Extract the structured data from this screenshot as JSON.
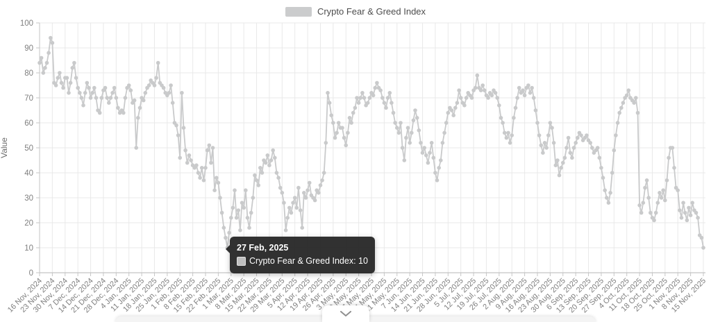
{
  "legend": {
    "label": "Crypto Fear & Greed Index",
    "swatch_color": "#cbcccd"
  },
  "y_axis": {
    "title": "Value"
  },
  "tooltip": {
    "date": "27 Feb, 2025",
    "series_label": "Crypto Fear & Greed Index: 10",
    "value": 10,
    "anchor_date_index": 103
  },
  "chart_data": {
    "type": "line",
    "series": [
      {
        "name": "Crypto Fear & Greed Index",
        "color": "#c9cacb"
      }
    ],
    "title": "",
    "xlabel": "",
    "ylabel": "Value",
    "ylim": [
      0,
      100
    ],
    "y_tick_step": 10,
    "grid": true,
    "legend_position": "top",
    "start_date": "2024-11-16",
    "x_tick_every_days": 7,
    "x_tick_labels": [
      "16 Nov, 2024",
      "23 Nov, 2024",
      "30 Nov, 2024",
      "7 Dec, 2024",
      "14 Dec, 2024",
      "21 Dec, 2024",
      "28 Dec, 2024",
      "4 Jan, 2025",
      "11 Jan, 2025",
      "18 Jan, 2025",
      "25 Jan, 2025",
      "1 Feb, 2025",
      "8 Feb, 2025",
      "15 Feb, 2025",
      "22 Feb, 2025",
      "1 Mar, 2025",
      "8 Mar, 2025",
      "15 Mar, 2025",
      "22 Mar, 2025",
      "29 Mar, 2025",
      "5 Apr, 2025",
      "12 Apr, 2025",
      "19 Apr, 2025",
      "26 Apr, 2025",
      "3 May, 2025",
      "10 May, 2025",
      "17 May, 2025",
      "24 May, 2025",
      "31 May, 2025",
      "7 Jun, 2025",
      "14 Jun, 2025",
      "21 Jun, 2025",
      "28 Jun, 2025",
      "5 Jul, 2025",
      "12 Jul, 2025",
      "19 Jul, 2025",
      "26 Jul, 2025",
      "2 Aug, 2025",
      "9 Aug, 2025",
      "16 Aug, 2025",
      "23 Aug, 2025",
      "30 Aug, 2025",
      "6 Sep, 2025",
      "13 Sep, 2025",
      "20 Sep, 2025",
      "27 Sep, 2025",
      "4 Oct, 2025",
      "11 Oct, 2025",
      "18 Oct, 2025",
      "25 Oct, 2025",
      "1 Nov, 2025",
      "8 Nov, 2025",
      "15 Nov, 2025"
    ],
    "values": [
      84,
      86,
      80,
      82,
      84,
      88,
      94,
      92,
      76,
      75,
      78,
      80,
      76,
      74,
      78,
      78,
      72,
      76,
      82,
      84,
      78,
      74,
      72,
      70,
      67,
      72,
      76,
      74,
      70,
      72,
      74,
      70,
      65,
      64,
      70,
      73,
      74,
      70,
      68,
      70,
      72,
      74,
      70,
      66,
      64,
      65,
      64,
      70,
      74,
      75,
      73,
      68,
      69,
      50,
      62,
      66,
      70,
      69,
      72,
      74,
      75,
      77,
      76,
      75,
      78,
      84,
      76,
      75,
      74,
      72,
      71,
      72,
      75,
      68,
      60,
      59,
      55,
      46,
      72,
      58,
      49,
      44,
      47,
      45,
      43,
      42,
      43,
      40,
      38,
      42,
      37,
      42,
      49,
      51,
      44,
      50,
      33,
      38,
      36,
      30,
      24,
      18,
      14,
      10,
      16,
      22,
      26,
      33,
      22,
      25,
      17,
      28,
      26,
      33,
      22,
      18,
      24,
      30,
      39,
      37,
      35,
      42,
      40,
      45,
      44,
      47,
      43,
      45,
      49,
      46,
      40,
      38,
      34,
      32,
      28,
      17,
      22,
      26,
      24,
      28,
      30,
      26,
      34,
      25,
      18,
      32,
      30,
      33,
      36,
      31,
      30,
      29,
      33,
      32,
      35,
      37,
      40,
      52,
      72,
      68,
      63,
      60,
      54,
      56,
      60,
      58,
      58,
      54,
      51,
      56,
      62,
      60,
      64,
      66,
      70,
      68,
      70,
      72,
      70,
      67,
      68,
      70,
      72,
      71,
      74,
      76,
      74,
      73,
      70,
      68,
      66,
      70,
      72,
      68,
      64,
      60,
      58,
      56,
      60,
      50,
      45,
      54,
      58,
      52,
      56,
      61,
      65,
      62,
      57,
      52,
      48,
      50,
      47,
      44,
      48,
      52,
      46,
      40,
      37,
      42,
      45,
      52,
      56,
      60,
      64,
      66,
      65,
      63,
      66,
      68,
      73,
      70,
      68,
      67,
      70,
      72,
      71,
      70,
      73,
      74,
      79,
      74,
      73,
      75,
      73,
      71,
      70,
      72,
      71,
      73,
      72,
      70,
      67,
      62,
      60,
      56,
      54,
      56,
      52,
      55,
      62,
      66,
      70,
      74,
      72,
      73,
      71,
      74,
      75,
      72,
      74,
      70,
      65,
      60,
      55,
      51,
      48,
      52,
      50,
      55,
      60,
      58,
      52,
      43,
      45,
      39,
      42,
      44,
      46,
      50,
      54,
      48,
      46,
      50,
      52,
      54,
      56,
      55,
      53,
      54,
      55,
      53,
      52,
      50,
      48,
      49,
      50,
      46,
      42,
      38,
      33,
      30,
      28,
      32,
      40,
      49,
      55,
      60,
      64,
      66,
      68,
      70,
      71,
      73,
      70,
      69,
      68,
      70,
      64,
      27,
      24,
      28,
      34,
      37,
      30,
      24,
      22,
      21,
      24,
      28,
      32,
      30,
      33,
      29,
      37,
      46,
      50,
      50,
      42,
      34,
      33,
      25,
      22,
      28,
      24,
      21,
      26,
      23,
      28,
      25,
      24,
      22,
      15,
      14,
      10
    ]
  },
  "controls": {
    "expand_button_icon": "chevron-down"
  }
}
